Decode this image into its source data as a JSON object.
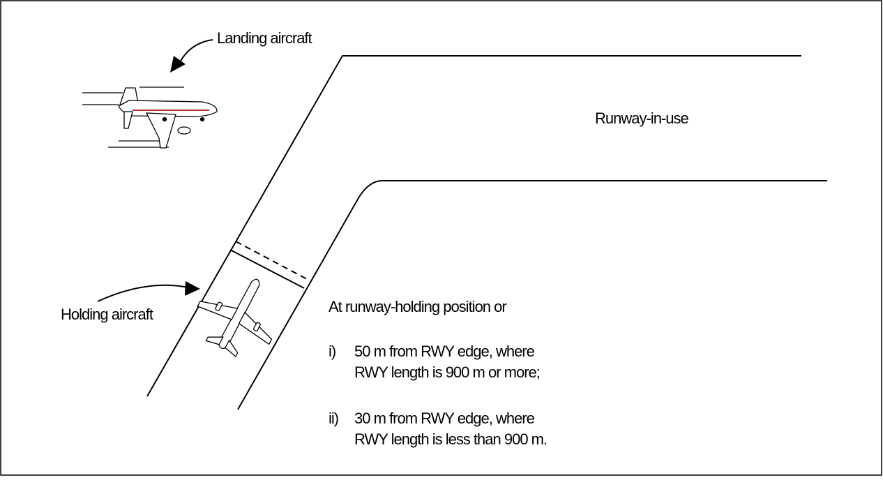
{
  "labels": {
    "landing_aircraft": "Landing aircraft",
    "holding_aircraft": "Holding aircraft",
    "runway_in_use": "Runway-in-use",
    "position_heading": "At runway-holding position or"
  },
  "conditions": [
    {
      "marker": "i)",
      "line1": "50 m from RWY edge, where",
      "line2": "RWY length is 900 m or more;"
    },
    {
      "marker": "ii)",
      "line1": "30 m from RWY edge, where",
      "line2": "RWY length is less than 900 m."
    }
  ],
  "colors": {
    "stroke": "#000000",
    "background": "#ffffff",
    "aircraft_stripe": "#b03030"
  }
}
